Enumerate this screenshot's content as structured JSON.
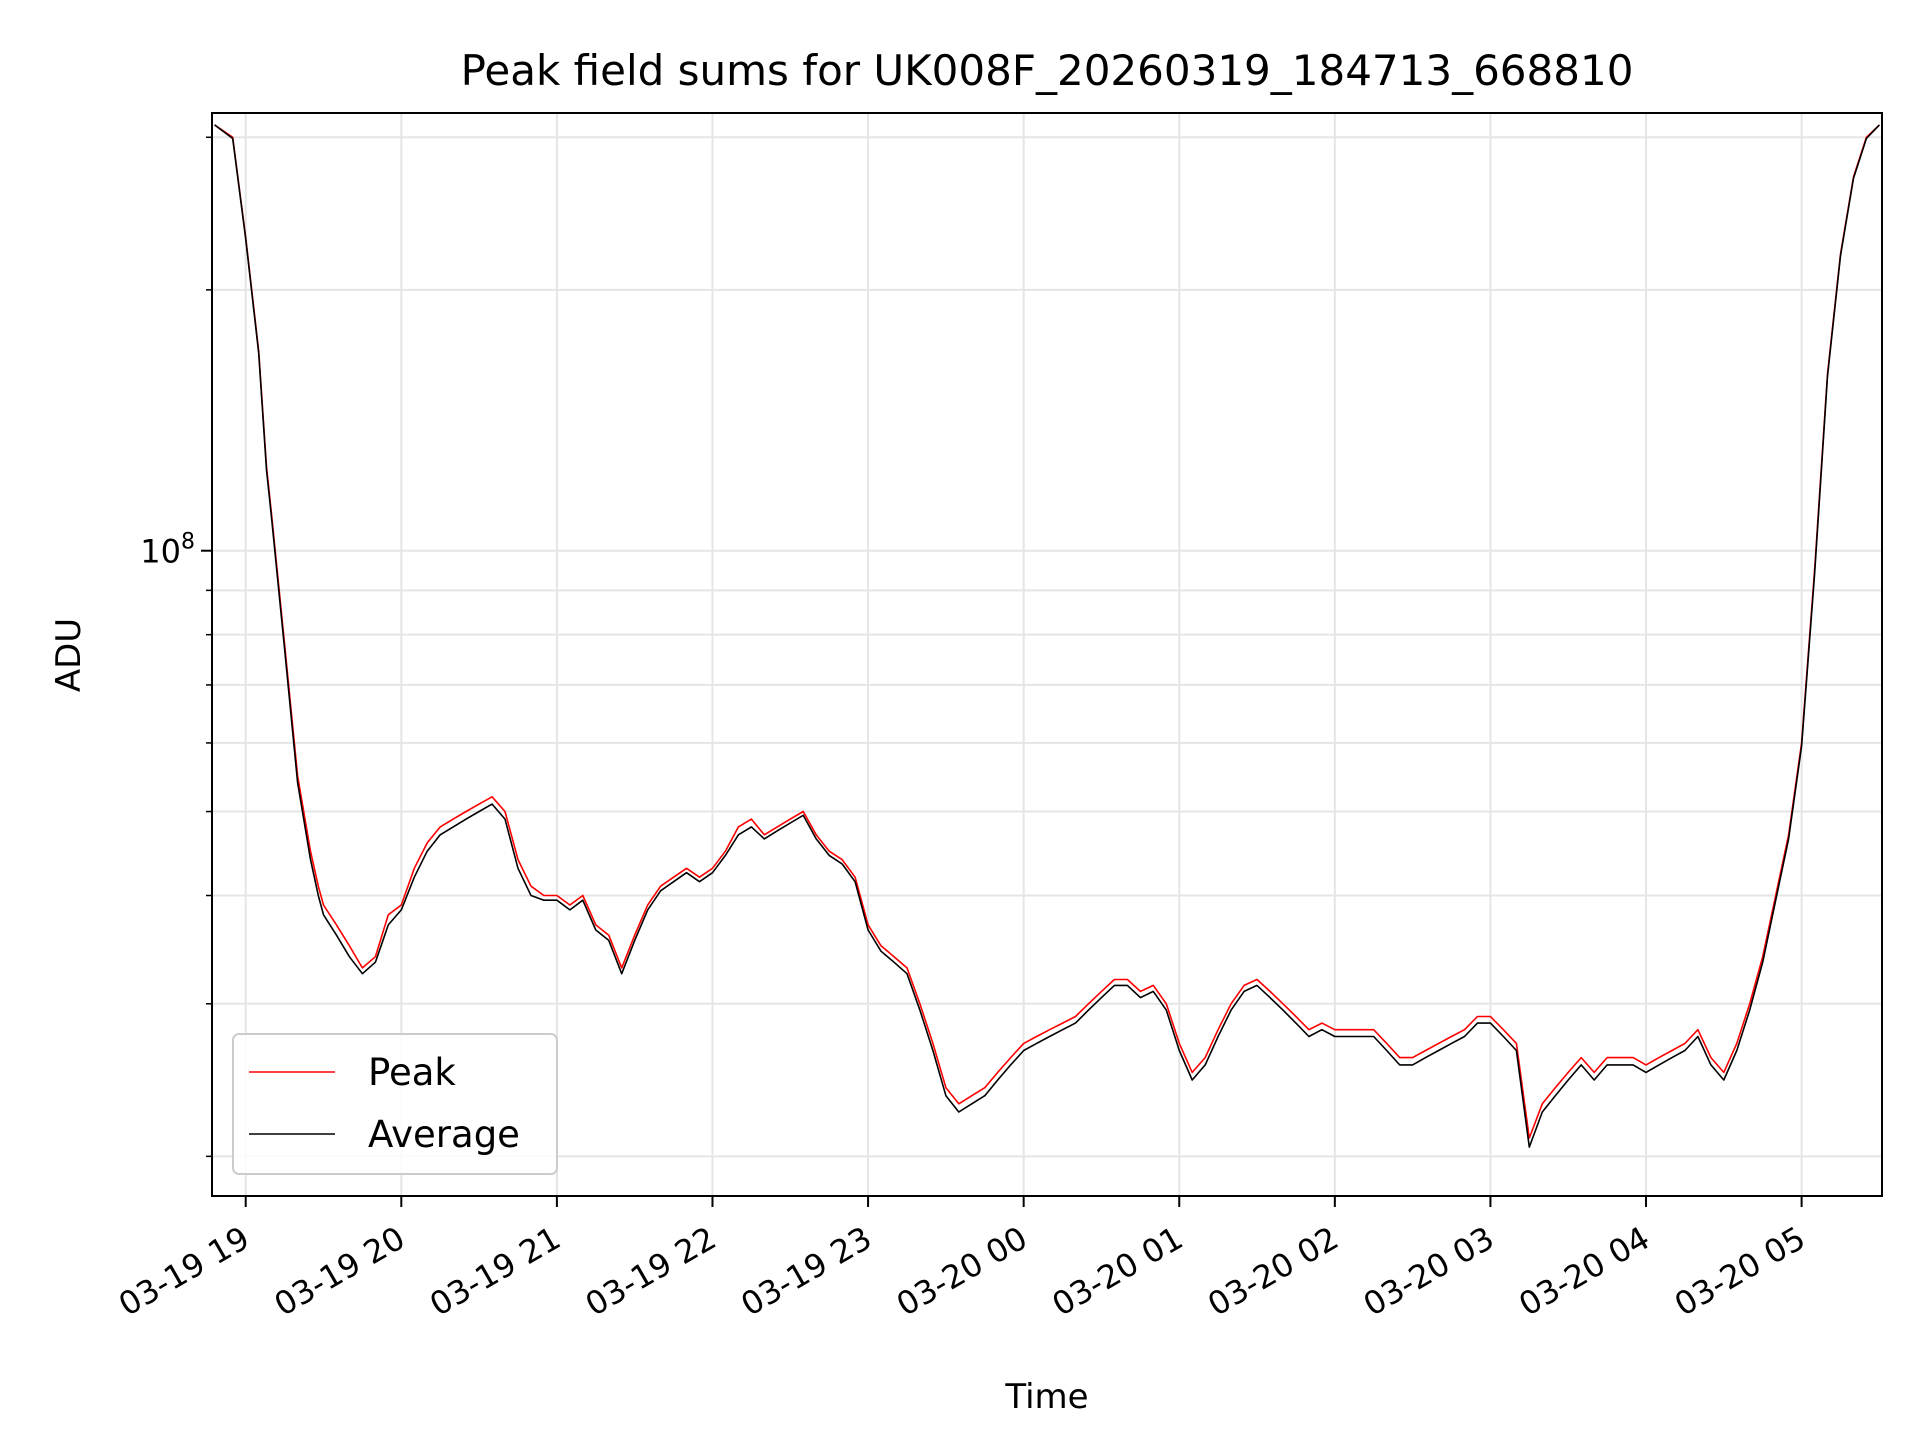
{
  "chart_data": {
    "type": "line",
    "title": "Peak field sums for UK008F_20260319_184713_668810",
    "xlabel": "Time",
    "ylabel": "ADU",
    "yscale": "log",
    "ylim": [
      18000000,
      320000000
    ],
    "xlim": [
      "03-19 18:47",
      "03-20 05:31"
    ],
    "x_ticks": [
      "03-19 19",
      "03-19 20",
      "03-19 21",
      "03-19 22",
      "03-19 23",
      "03-20 00",
      "03-20 01",
      "03-20 02",
      "03-20 03",
      "03-20 04",
      "03-20 05"
    ],
    "y_ticks": [
      {
        "label": "10",
        "exponent": "8",
        "value": 100000000
      }
    ],
    "grid": true,
    "legend_position": "lower-left",
    "x": [
      "03-19 18:48",
      "03-19 18:55",
      "03-19 19:00",
      "03-19 19:05",
      "03-19 19:08",
      "03-19 19:10",
      "03-19 19:15",
      "03-19 19:20",
      "03-19 19:25",
      "03-19 19:28",
      "03-19 19:30",
      "03-19 19:35",
      "03-19 19:40",
      "03-19 19:45",
      "03-19 19:50",
      "03-19 19:55",
      "03-19 20:00",
      "03-19 20:05",
      "03-19 20:10",
      "03-19 20:15",
      "03-19 20:20",
      "03-19 20:25",
      "03-19 20:30",
      "03-19 20:35",
      "03-19 20:40",
      "03-19 20:45",
      "03-19 20:50",
      "03-19 20:55",
      "03-19 21:00",
      "03-19 21:05",
      "03-19 21:10",
      "03-19 21:15",
      "03-19 21:20",
      "03-19 21:25",
      "03-19 21:30",
      "03-19 21:35",
      "03-19 21:40",
      "03-19 21:45",
      "03-19 21:50",
      "03-19 21:55",
      "03-19 22:00",
      "03-19 22:05",
      "03-19 22:10",
      "03-19 22:15",
      "03-19 22:20",
      "03-19 22:25",
      "03-19 22:30",
      "03-19 22:35",
      "03-19 22:40",
      "03-19 22:45",
      "03-19 22:50",
      "03-19 22:55",
      "03-19 23:00",
      "03-19 23:05",
      "03-19 23:10",
      "03-19 23:15",
      "03-19 23:20",
      "03-19 23:25",
      "03-19 23:30",
      "03-19 23:35",
      "03-19 23:40",
      "03-19 23:45",
      "03-19 23:50",
      "03-19 23:55",
      "03-20 00:00",
      "03-20 00:05",
      "03-20 00:10",
      "03-20 00:15",
      "03-20 00:20",
      "03-20 00:25",
      "03-20 00:30",
      "03-20 00:35",
      "03-20 00:40",
      "03-20 00:45",
      "03-20 00:50",
      "03-20 00:55",
      "03-20 01:00",
      "03-20 01:05",
      "03-20 01:10",
      "03-20 01:15",
      "03-20 01:20",
      "03-20 01:25",
      "03-20 01:30",
      "03-20 01:35",
      "03-20 01:40",
      "03-20 01:45",
      "03-20 01:50",
      "03-20 01:55",
      "03-20 02:00",
      "03-20 02:05",
      "03-20 02:10",
      "03-20 02:15",
      "03-20 02:20",
      "03-20 02:25",
      "03-20 02:30",
      "03-20 02:35",
      "03-20 02:40",
      "03-20 02:45",
      "03-20 02:50",
      "03-20 02:55",
      "03-20 03:00",
      "03-20 03:05",
      "03-20 03:10",
      "03-20 03:15",
      "03-20 03:20",
      "03-20 03:25",
      "03-20 03:30",
      "03-20 03:35",
      "03-20 03:40",
      "03-20 03:45",
      "03-20 03:50",
      "03-20 03:55",
      "03-20 04:00",
      "03-20 04:05",
      "03-20 04:10",
      "03-20 04:15",
      "03-20 04:20",
      "03-20 04:25",
      "03-20 04:30",
      "03-20 04:35",
      "03-20 04:40",
      "03-20 04:45",
      "03-20 04:50",
      "03-20 04:55",
      "03-20 05:00",
      "03-20 05:05",
      "03-20 05:10",
      "03-20 05:15",
      "03-20 05:20",
      "03-20 05:25",
      "03-20 05:30"
    ],
    "series": [
      {
        "name": "Peak",
        "color": "#ff0000",
        "values": [
          310000000,
          300000000,
          230000000,
          170000000,
          125000000,
          110000000,
          78000000,
          55000000,
          45000000,
          41000000,
          39000000,
          37000000,
          35000000,
          33000000,
          34000000,
          38000000,
          39000000,
          43000000,
          46000000,
          48000000,
          49000000,
          50000000,
          51000000,
          52000000,
          50000000,
          44000000,
          41000000,
          40000000,
          40000000,
          39000000,
          40000000,
          37000000,
          36000000,
          33000000,
          36000000,
          39000000,
          41000000,
          42000000,
          43000000,
          42000000,
          43000000,
          45000000,
          48000000,
          49000000,
          47000000,
          48000000,
          49000000,
          50000000,
          47000000,
          45000000,
          44000000,
          42000000,
          37000000,
          35000000,
          34000000,
          33000000,
          30000000,
          27000000,
          24000000,
          23000000,
          23500000,
          24000000,
          25000000,
          26000000,
          27000000,
          27500000,
          28000000,
          28500000,
          29000000,
          30000000,
          31000000,
          32000000,
          32000000,
          31000000,
          31500000,
          30000000,
          27000000,
          25000000,
          26000000,
          28000000,
          30000000,
          31500000,
          32000000,
          31000000,
          30000000,
          29000000,
          28000000,
          28500000,
          28000000,
          28000000,
          28000000,
          28000000,
          27000000,
          26000000,
          26000000,
          26500000,
          27000000,
          27500000,
          28000000,
          29000000,
          29000000,
          28000000,
          27000000,
          21000000,
          23000000,
          24000000,
          25000000,
          26000000,
          25000000,
          26000000,
          26000000,
          26000000,
          25500000,
          26000000,
          26500000,
          27000000,
          28000000,
          26000000,
          25000000,
          27000000,
          30000000,
          34000000,
          40000000,
          47000000,
          60000000,
          95000000,
          160000000,
          220000000,
          270000000,
          300000000,
          310000000
        ]
      },
      {
        "name": "Average",
        "color": "#000000",
        "values": [
          310000000,
          299000000,
          229000000,
          169000000,
          124000000,
          109000000,
          77000000,
          54000000,
          44000000,
          40000000,
          38000000,
          36000000,
          34000000,
          32500000,
          33500000,
          37000000,
          38500000,
          42000000,
          45000000,
          47000000,
          48000000,
          49000000,
          50000000,
          51000000,
          49000000,
          43000000,
          40000000,
          39500000,
          39500000,
          38500000,
          39500000,
          36500000,
          35500000,
          32500000,
          35500000,
          38500000,
          40500000,
          41500000,
          42500000,
          41500000,
          42500000,
          44500000,
          47000000,
          48000000,
          46500000,
          47500000,
          48500000,
          49500000,
          46500000,
          44500000,
          43500000,
          41500000,
          36500000,
          34500000,
          33500000,
          32500000,
          29500000,
          26500000,
          23500000,
          22500000,
          23000000,
          23500000,
          24500000,
          25500000,
          26500000,
          27000000,
          27500000,
          28000000,
          28500000,
          29500000,
          30500000,
          31500000,
          31500000,
          30500000,
          31000000,
          29500000,
          26500000,
          24500000,
          25500000,
          27500000,
          29500000,
          31000000,
          31500000,
          30500000,
          29500000,
          28500000,
          27500000,
          28000000,
          27500000,
          27500000,
          27500000,
          27500000,
          26500000,
          25500000,
          25500000,
          26000000,
          26500000,
          27000000,
          27500000,
          28500000,
          28500000,
          27500000,
          26500000,
          20500000,
          22500000,
          23500000,
          24500000,
          25500000,
          24500000,
          25500000,
          25500000,
          25500000,
          25000000,
          25500000,
          26000000,
          26500000,
          27500000,
          25500000,
          24500000,
          26500000,
          29500000,
          33500000,
          39500000,
          46500000,
          59500000,
          94000000,
          159000000,
          219000000,
          269000000,
          299000000,
          310000000
        ]
      }
    ]
  }
}
